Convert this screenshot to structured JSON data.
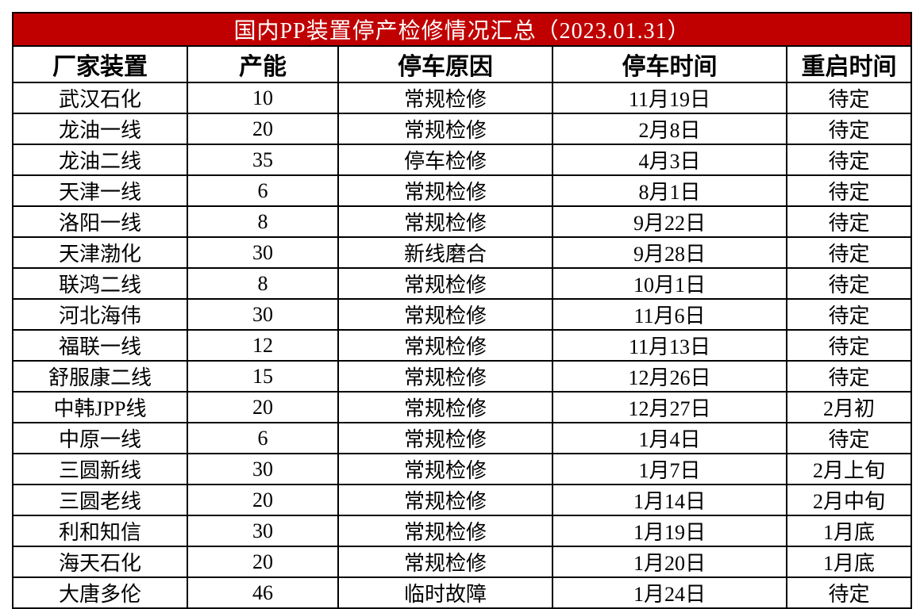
{
  "table": {
    "title": "国内PP装置停产检修情况汇总（2023.01.31）",
    "columns": [
      "厂家装置",
      "产能",
      "停车原因",
      "停车时间",
      "重启时间"
    ],
    "rows": [
      [
        "武汉石化",
        10,
        "常规检修",
        "11月19日",
        "待定"
      ],
      [
        "龙油一线",
        20,
        "常规检修",
        "2月8日",
        "待定"
      ],
      [
        "龙油二线",
        35,
        "停车检修",
        "4月3日",
        "待定"
      ],
      [
        "天津一线",
        6,
        "常规检修",
        "8月1日",
        "待定"
      ],
      [
        "洛阳一线",
        8,
        "常规检修",
        "9月22日",
        "待定"
      ],
      [
        "天津渤化",
        30,
        "新线磨合",
        "9月28日",
        "待定"
      ],
      [
        "联鸿二线",
        8,
        "常规检修",
        "10月1日",
        "待定"
      ],
      [
        "河北海伟",
        30,
        "常规检修",
        "11月6日",
        "待定"
      ],
      [
        "福联一线",
        12,
        "常规检修",
        "11月13日",
        "待定"
      ],
      [
        "舒服康二线",
        15,
        "常规检修",
        "12月26日",
        "待定"
      ],
      [
        "中韩JPP线",
        20,
        "常规检修",
        "12月27日",
        "2月初"
      ],
      [
        "中原一线",
        6,
        "常规检修",
        "1月4日",
        "待定"
      ],
      [
        "三圆新线",
        30,
        "常规检修",
        "1月7日",
        "2月上旬"
      ],
      [
        "三圆老线",
        20,
        "常规检修",
        "1月14日",
        "2月中旬"
      ],
      [
        "利和知信",
        30,
        "常规检修",
        "1月19日",
        "1月底"
      ],
      [
        "海天石化",
        20,
        "常规检修",
        "1月20日",
        "1月底"
      ],
      [
        "大唐多伦",
        46,
        "临时故障",
        "1月24日",
        "待定"
      ]
    ]
  }
}
